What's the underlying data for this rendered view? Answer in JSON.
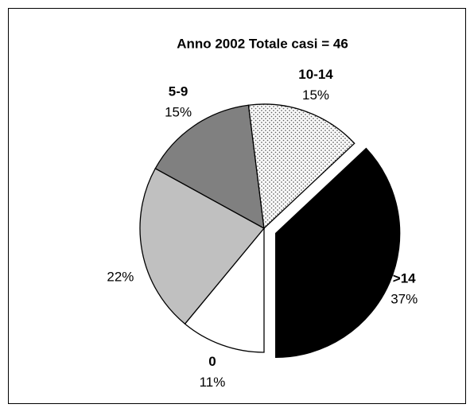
{
  "chart_data": {
    "type": "pie",
    "title": "Anno 2002 Totale casi = 46",
    "categories": [
      ">14",
      "0",
      null,
      "5-9",
      "10-14"
    ],
    "values": [
      37,
      11,
      22,
      15,
      15
    ],
    "value_labels": [
      "37%",
      "11%",
      "22%",
      "15%",
      "15%"
    ],
    "colors": [
      "#000000",
      "#ffffff",
      "#c0c0c0",
      "#808080",
      "#ffffff"
    ],
    "patterns": [
      null,
      null,
      null,
      null,
      "dots"
    ],
    "exploded": [
      true,
      false,
      false,
      false,
      false
    ]
  }
}
